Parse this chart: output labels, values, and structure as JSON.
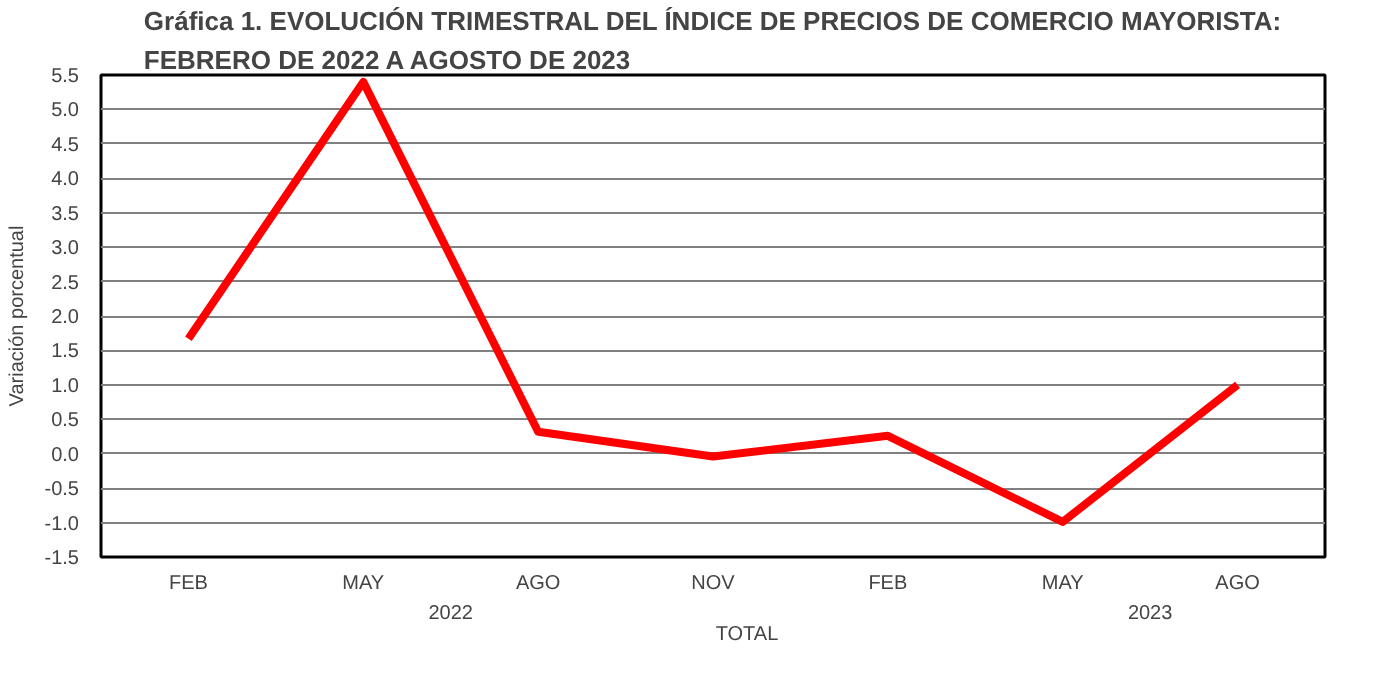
{
  "chart_data": {
    "type": "line",
    "title": "Gráfica 1. EVOLUCIÓN TRIMESTRAL DEL ÍNDICE DE PRECIOS DE COMERCIO MAYORISTA:\nFEBRERO DE 2022 A AGOSTO DE 2023",
    "ylabel": "Variación porcentual",
    "categories": [
      "FEB",
      "MAY",
      "AGO",
      "NOV",
      "FEB",
      "MAY",
      "AGO"
    ],
    "annotations": [
      "2022",
      "2023"
    ],
    "series": [
      {
        "name": "TOTAL",
        "color": "#ff0000",
        "values": [
          1.67,
          5.4,
          0.32,
          -0.04,
          0.26,
          -0.99,
          1.0
        ]
      }
    ],
    "ylim": [
      -1.5,
      5.5
    ],
    "yticks": [
      -1.5,
      {
        "value": -1,
        "label": "-1.0"
      },
      -0.5,
      {
        "value": 0,
        "label": "0.0"
      },
      0.5,
      {
        "value": 1,
        "label": "1.0"
      },
      1.5,
      {
        "value": 2,
        "label": "2.0"
      },
      2.5,
      {
        "value": 3,
        "label": "3.0"
      },
      3.5,
      {
        "value": 4,
        "label": "4.0"
      },
      4.5,
      {
        "value": 5,
        "label": "5.0"
      },
      5.5
    ],
    "grid": "y",
    "legend": "bottom",
    "marker": "none",
    "line_style": "solid"
  }
}
